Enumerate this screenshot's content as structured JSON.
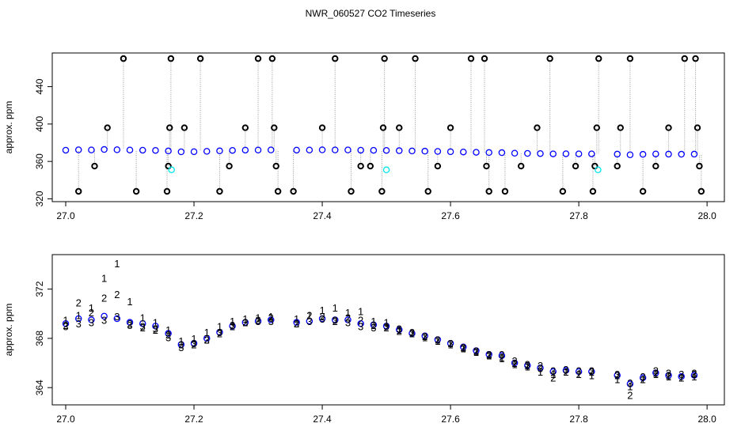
{
  "title": "NWR_060527  CO2 Timeseries",
  "chart_data": [
    {
      "type": "scatter",
      "ylabel": "approx. ppm",
      "xlim": [
        26.979,
        28.027
      ],
      "ylim": [
        317,
        476
      ],
      "xticks": [
        {
          "value": 27,
          "label": "27.0"
        },
        {
          "value": 27.2,
          "label": "27.2"
        },
        {
          "value": 27.4,
          "label": "27.4"
        },
        {
          "value": 27.6,
          "label": "27.6"
        },
        {
          "value": 27.8,
          "label": "27.8"
        },
        {
          "value": 28,
          "label": "28.0"
        }
      ],
      "yticks": [
        320,
        360,
        400,
        440
      ],
      "series": [
        {
          "color": "#0000ff",
          "x": [
            27,
            27.02,
            27.04,
            27.06,
            27.08,
            27.1,
            27.12,
            27.14,
            27.16,
            27.18,
            27.2,
            27.22,
            27.24,
            27.26,
            27.28,
            27.3,
            27.32,
            27.34,
            27.36,
            27.38,
            27.4,
            27.42,
            27.44,
            27.46,
            27.48,
            27.5,
            27.52,
            27.54,
            27.56,
            27.58,
            27.6,
            27.62,
            27.64,
            27.66,
            27.68,
            27.7,
            27.72,
            27.74,
            27.76,
            27.78,
            27.8,
            27.82,
            27.84,
            27.86,
            27.88,
            27.9,
            27.92,
            27.94,
            27.96,
            27.98
          ],
          "values": [
            372.0,
            372.4,
            372.3,
            372.8,
            372.5,
            372.2,
            372.0,
            371.8,
            371.2,
            370.3,
            370.4,
            370.8,
            371.3,
            371.8,
            372.1,
            372.2,
            372.3,
            null,
            372.1,
            372.2,
            372.4,
            372.3,
            372.3,
            372.0,
            371.9,
            371.8,
            371.5,
            371.2,
            371.0,
            370.7,
            370.4,
            370.1,
            369.8,
            369.5,
            369.4,
            368.8,
            368.6,
            368.4,
            368.1,
            368.2,
            368.1,
            368.1,
            null,
            367.8,
            367.1,
            367.6,
            368.0,
            367.8,
            367.7,
            367.8
          ]
        },
        {
          "color": "#000000",
          "x": [
            27.02,
            27.045,
            27.065,
            27.09,
            27.11,
            27.158,
            27.16,
            27.162,
            27.164,
            27.185,
            27.21,
            27.24,
            27.255,
            27.28,
            27.3,
            27.322,
            27.325,
            27.328,
            27.331,
            27.355,
            27.4,
            27.42,
            27.445,
            27.46,
            27.475,
            27.493,
            27.495,
            27.497,
            27.52,
            27.545,
            27.565,
            27.58,
            27.6,
            27.632,
            27.653,
            27.656,
            27.66,
            27.685,
            27.71,
            27.735,
            27.755,
            27.775,
            27.795,
            27.822,
            27.825,
            27.828,
            27.831,
            27.86,
            27.865,
            27.88,
            27.9,
            27.92,
            27.94,
            27.965,
            27.982,
            27.985,
            27.988,
            27.991
          ],
          "values": [
            328,
            355,
            396,
            470,
            328,
            328,
            355,
            396,
            470,
            396,
            470,
            328,
            355,
            396,
            470,
            470,
            396,
            355,
            328,
            328,
            396,
            470,
            328,
            355,
            355,
            328,
            396,
            470,
            396,
            470,
            328,
            355,
            396,
            470,
            470,
            355,
            328,
            328,
            355,
            396,
            470,
            328,
            355,
            328,
            355,
            396,
            470,
            355,
            396,
            470,
            328,
            355,
            396,
            470,
            470,
            396,
            355,
            328
          ]
        },
        {
          "color": "#00e5ee",
          "x": [
            27.165,
            27.5,
            27.83
          ],
          "values": [
            351,
            351,
            351
          ]
        }
      ]
    },
    {
      "type": "scatter",
      "ylabel": "approx. ppm",
      "xlim": [
        26.979,
        28.027
      ],
      "ylim": [
        362.6,
        374.8
      ],
      "xticks": [
        {
          "value": 27,
          "label": "27.0"
        },
        {
          "value": 27.2,
          "label": "27.2"
        },
        {
          "value": 27.4,
          "label": "27.4"
        },
        {
          "value": 27.6,
          "label": "27.6"
        },
        {
          "value": 27.8,
          "label": "27.8"
        },
        {
          "value": 28,
          "label": "28.0"
        }
      ],
      "yticks": [
        364,
        368,
        372
      ],
      "x": [
        27,
        27.02,
        27.04,
        27.06,
        27.08,
        27.1,
        27.12,
        27.14,
        27.16,
        27.18,
        27.2,
        27.22,
        27.24,
        27.26,
        27.28,
        27.3,
        27.32,
        27.34,
        27.36,
        27.38,
        27.4,
        27.42,
        27.44,
        27.46,
        27.48,
        27.5,
        27.52,
        27.54,
        27.56,
        27.58,
        27.6,
        27.62,
        27.64,
        27.66,
        27.68,
        27.7,
        27.72,
        27.74,
        27.76,
        27.78,
        27.8,
        27.82,
        27.84,
        27.86,
        27.88,
        27.9,
        27.92,
        27.94,
        27.96,
        27.98
      ],
      "series": [
        {
          "color": "#0000ff",
          "values": [
            369.2,
            369.6,
            369.5,
            369.8,
            369.6,
            369.3,
            369.2,
            369.0,
            368.4,
            367.5,
            367.6,
            368.0,
            368.5,
            369.0,
            369.3,
            369.4,
            369.5,
            null,
            369.3,
            369.4,
            369.6,
            369.5,
            369.5,
            369.2,
            369.1,
            369.0,
            368.7,
            368.4,
            368.2,
            367.9,
            367.6,
            367.3,
            367.0,
            366.7,
            366.6,
            366.0,
            365.8,
            365.6,
            365.3,
            365.4,
            365.3,
            365.3,
            null,
            365.0,
            364.3,
            364.8,
            365.2,
            365.0,
            364.9,
            365.0
          ]
        },
        {
          "name": "1",
          "color": "#dd0000",
          "values": [
            369.4,
            369.8,
            370.4,
            372.8,
            374.0,
            370.9,
            369.6,
            369.2,
            368.6,
            367.7,
            367.9,
            368.4,
            368.9,
            369.3,
            369.5,
            369.6,
            369.7,
            null,
            369.5,
            369.8,
            370.2,
            370.4,
            370.0,
            370.1,
            369.3,
            369.2,
            368.6,
            368.3,
            368.0,
            367.7,
            367.4,
            367.1,
            366.8,
            366.5,
            366.3,
            365.8,
            365.6,
            365.2,
            365.0,
            365.2,
            365.0,
            364.9,
            null,
            364.6,
            364.0,
            364.6,
            365.0,
            364.8,
            364.7,
            364.8
          ]
        },
        {
          "name": "2",
          "color": "#00bb00",
          "values": [
            369.0,
            370.8,
            370.0,
            371.2,
            371.5,
            369.1,
            368.8,
            368.6,
            368.2,
            367.4,
            367.4,
            367.8,
            368.3,
            368.9,
            369.2,
            369.4,
            369.6,
            null,
            369.1,
            369.8,
            369.7,
            369.3,
            369.6,
            369.4,
            369.0,
            368.8,
            368.5,
            368.3,
            368.1,
            367.8,
            367.5,
            367.2,
            366.9,
            366.6,
            366.4,
            365.9,
            365.7,
            365.7,
            364.7,
            365.2,
            365.0,
            365.2,
            null,
            364.9,
            363.3,
            364.6,
            365.1,
            364.9,
            364.7,
            365.1
          ]
        },
        {
          "name": "3",
          "color": "#0000cc",
          "values": [
            368.9,
            369.1,
            369.2,
            369.4,
            369.7,
            369.0,
            368.9,
            368.7,
            368.0,
            367.2,
            367.5,
            367.8,
            368.4,
            369.0,
            369.2,
            369.3,
            369.3,
            null,
            369.1,
            369.3,
            369.5,
            369.4,
            369.2,
            368.9,
            368.8,
            368.9,
            368.7,
            368.4,
            368.1,
            367.8,
            367.5,
            367.1,
            366.8,
            366.5,
            366.6,
            366.1,
            365.8,
            365.5,
            365.3,
            365.4,
            365.3,
            365.3,
            null,
            365.0,
            364.3,
            364.8,
            365.3,
            365.1,
            365.0,
            365.0
          ]
        }
      ]
    }
  ]
}
